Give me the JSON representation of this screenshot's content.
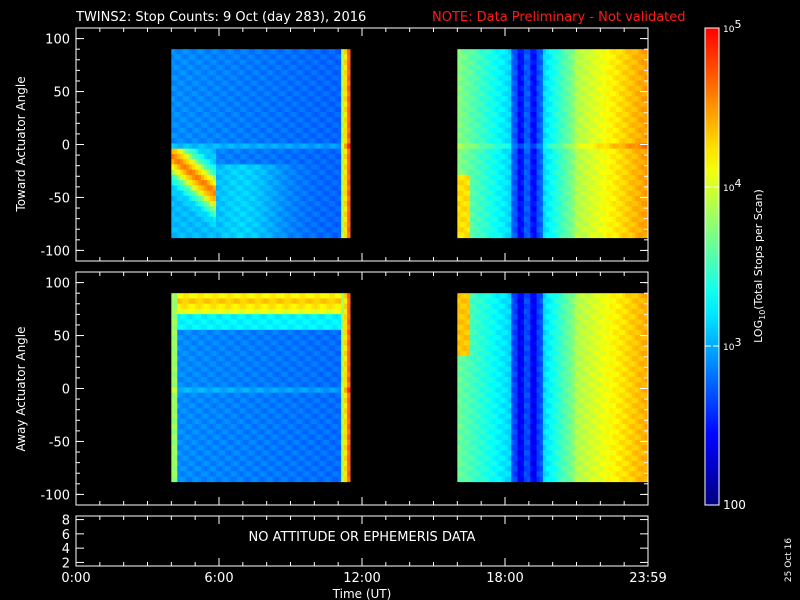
{
  "header": {
    "title": "TWINS2: Stop Counts:  9 Oct (day 283), 2016",
    "note": "NOTE: Data Preliminary - Not validated"
  },
  "colors": {
    "background": "#000000",
    "axes": "#ffffff",
    "note": "#ff1a1a",
    "colormap": [
      "#000080",
      "#0000ff",
      "#0080ff",
      "#00ffff",
      "#80ff80",
      "#ffff00",
      "#ff8000",
      "#ff0000"
    ]
  },
  "stamp": "25 Oct 16",
  "chart_data": [
    {
      "type": "heatmap",
      "name": "toward-panel",
      "ylabel": "Toward Actuator Angle",
      "ylim": [
        -110,
        110
      ],
      "yticks": [
        100,
        50,
        0,
        -50,
        -100
      ],
      "ytick_labels": [
        "100",
        "50",
        "0",
        "-50",
        "-100"
      ],
      "xlim": [
        0,
        24
      ],
      "data_y_range": [
        -88,
        90
      ],
      "segments": [
        {
          "start_hour": 4.0,
          "end_hour": 11.5,
          "profile": "toward-morning"
        },
        {
          "start_hour": 16.0,
          "end_hour": 23.98,
          "profile": "toward-evening"
        }
      ]
    },
    {
      "type": "heatmap",
      "name": "away-panel",
      "ylabel": "Away Actuator Angle",
      "ylim": [
        -110,
        110
      ],
      "yticks": [
        100,
        50,
        0,
        -50,
        -100
      ],
      "ytick_labels": [
        "100",
        "50",
        "0",
        "-50",
        "-100"
      ],
      "xlim": [
        0,
        24
      ],
      "data_y_range": [
        -88,
        90
      ],
      "segments": [
        {
          "start_hour": 4.0,
          "end_hour": 11.5,
          "profile": "away-morning"
        },
        {
          "start_hour": 16.0,
          "end_hour": 23.98,
          "profile": "away-evening"
        }
      ]
    },
    {
      "type": "line",
      "name": "ephemeris-panel",
      "ylim": [
        1.5,
        8.5
      ],
      "yticks": [
        8,
        6,
        4,
        2
      ],
      "ytick_labels": [
        "8",
        "6",
        "4",
        "2"
      ],
      "message": "NO ATTITUDE OR EPHEMERIS DATA"
    }
  ],
  "xaxis": {
    "label": "Time (UT)",
    "ticks": [
      0,
      6,
      12,
      18,
      24
    ],
    "tick_labels": [
      "0:00",
      "6:00",
      "12:00",
      "18:00",
      "23:59"
    ]
  },
  "colorbar": {
    "label": "LOG10(Total Stops per Scan)",
    "label_main": "LOG",
    "label_sub": "10",
    "label_rest": "(Total Stops per Scan)",
    "scale": "log",
    "range": [
      100,
      100000
    ],
    "ticks": [
      {
        "value": 100000,
        "label": "10",
        "exp": "5"
      },
      {
        "value": 10000,
        "label": "10",
        "exp": "4"
      },
      {
        "value": 1000,
        "label": "10",
        "exp": "3"
      },
      {
        "value": 100,
        "label": "100",
        "exp": ""
      }
    ]
  }
}
